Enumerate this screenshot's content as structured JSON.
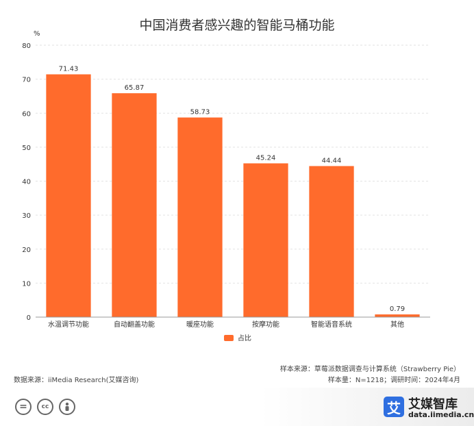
{
  "chart_data": {
    "type": "bar",
    "title": "中国消费者感兴趣的智能马桶功能",
    "ylabel": "%",
    "ylim": [
      0,
      80
    ],
    "yticks": [
      0,
      10,
      20,
      30,
      40,
      50,
      60,
      70,
      80
    ],
    "grid": true,
    "legend_position": "bottom",
    "categories": [
      "水温调节功能",
      "自动翻盖功能",
      "暖座功能",
      "按摩功能",
      "智能语音系统",
      "其他"
    ],
    "series": [
      {
        "name": "占比",
        "values": [
          71.43,
          65.87,
          58.73,
          45.24,
          44.44,
          0.79
        ],
        "color": "#ff6b2c"
      }
    ]
  },
  "notes": {
    "data_source": "数据来源：iiMedia Research(艾媒咨询)",
    "sample_source": "样本来源：草莓派数据调查与计算系统（Strawberry Pie）",
    "sample_size": "样本量：N=1218；调研时间：2024年4月"
  },
  "brand": {
    "logo_char": "艾",
    "name": "艾媒智库",
    "url": "data.iimedia.cn",
    "color": "#2f6fe0"
  },
  "license_icons": [
    "equal-icon",
    "cc-icon",
    "person-icon"
  ]
}
